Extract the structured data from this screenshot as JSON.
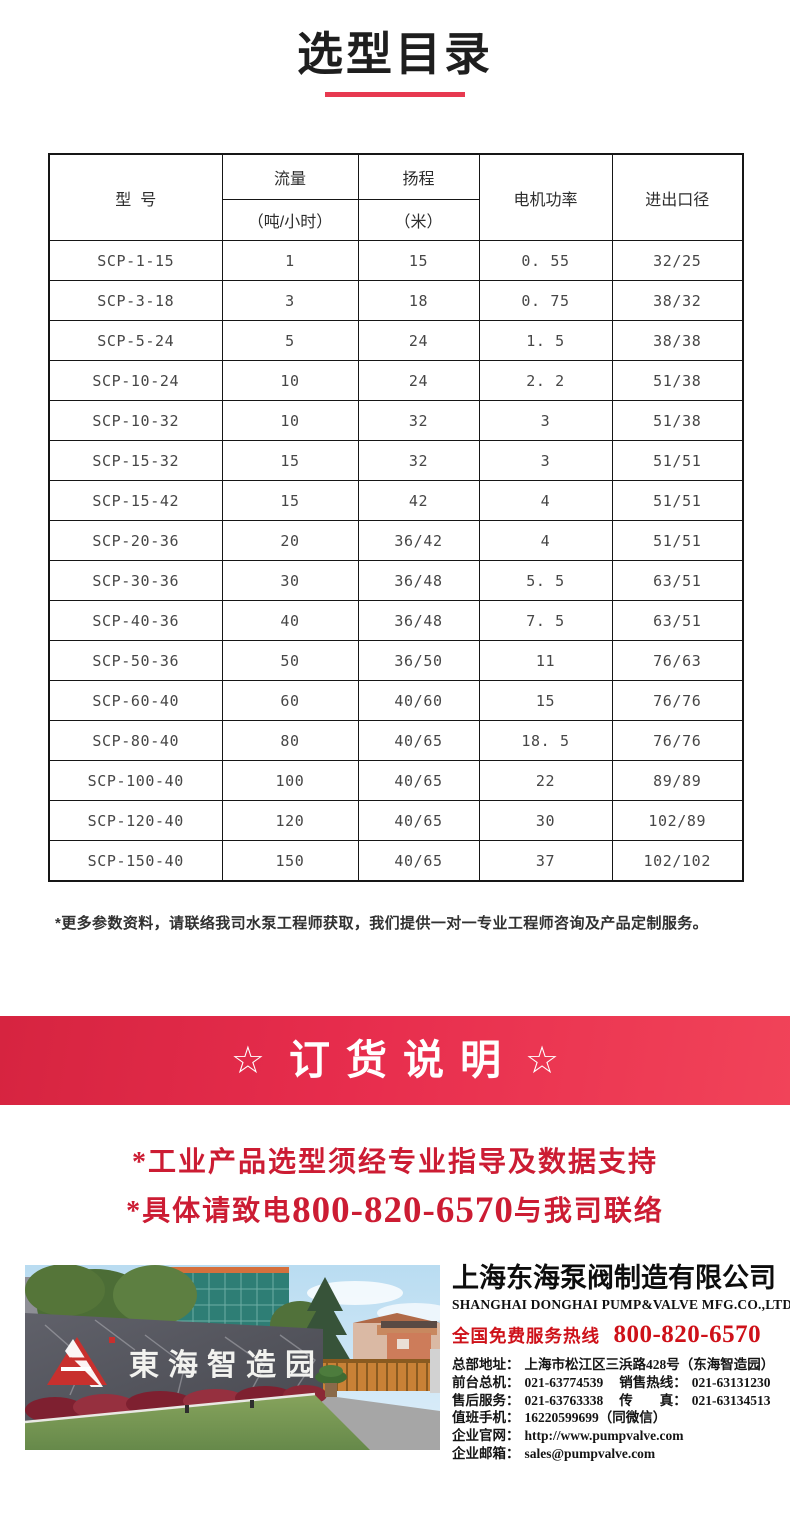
{
  "header": {
    "title": "选型目录"
  },
  "table": {
    "headers": {
      "model": "型  号",
      "flow": "流量",
      "flow_unit": "（吨/小时）",
      "head": "扬程",
      "head_unit": "（米）",
      "power": "电机功率",
      "ports": "进出口径"
    },
    "rows": [
      {
        "model": "SCP-1-15",
        "flow": "1",
        "head": "15",
        "power": "0. 55",
        "ports": "32/25"
      },
      {
        "model": "SCP-3-18",
        "flow": "3",
        "head": "18",
        "power": "0. 75",
        "ports": "38/32"
      },
      {
        "model": "SCP-5-24",
        "flow": "5",
        "head": "24",
        "power": "1. 5",
        "ports": "38/38"
      },
      {
        "model": "SCP-10-24",
        "flow": "10",
        "head": "24",
        "power": "2. 2",
        "ports": "51/38"
      },
      {
        "model": "SCP-10-32",
        "flow": "10",
        "head": "32",
        "power": "3",
        "ports": "51/38"
      },
      {
        "model": "SCP-15-32",
        "flow": "15",
        "head": "32",
        "power": "3",
        "ports": "51/51"
      },
      {
        "model": "SCP-15-42",
        "flow": "15",
        "head": "42",
        "power": "4",
        "ports": "51/51"
      },
      {
        "model": "SCP-20-36",
        "flow": "20",
        "head": "36/42",
        "power": "4",
        "ports": "51/51"
      },
      {
        "model": "SCP-30-36",
        "flow": "30",
        "head": "36/48",
        "power": "5. 5",
        "ports": "63/51"
      },
      {
        "model": "SCP-40-36",
        "flow": "40",
        "head": "36/48",
        "power": "7. 5",
        "ports": "63/51"
      },
      {
        "model": "SCP-50-36",
        "flow": "50",
        "head": "36/50",
        "power": "11",
        "ports": "76/63"
      },
      {
        "model": "SCP-60-40",
        "flow": "60",
        "head": "40/60",
        "power": "15",
        "ports": "76/76"
      },
      {
        "model": "SCP-80-40",
        "flow": "80",
        "head": "40/65",
        "power": "18. 5",
        "ports": "76/76"
      },
      {
        "model": "SCP-100-40",
        "flow": "100",
        "head": "40/65",
        "power": "22",
        "ports": "89/89"
      },
      {
        "model": "SCP-120-40",
        "flow": "120",
        "head": "40/65",
        "power": "30",
        "ports": "102/89"
      },
      {
        "model": "SCP-150-40",
        "flow": "150",
        "head": "40/65",
        "power": "37",
        "ports": "102/102"
      }
    ]
  },
  "footnote": "*更多参数资料，请联络我司水泵工程师获取，我们提供一对一专业工程师咨询及产品定制服务。",
  "order": {
    "star_left": "☆",
    "title": "订货说明",
    "star_right": "☆",
    "note1": "*工业产品选型须经专业指导及数据支持",
    "note2_prefix": "*具体请致电",
    "note2_phone": "800-820-6570",
    "note2_suffix": "与我司联络"
  },
  "company": {
    "name_cn": "上海东海泵阀制造有限公司",
    "name_en": "SHANGHAI DONGHAI PUMP&VALVE MFG.CO.,LTD.",
    "hotline_label": "全国免费服务热线",
    "hotline_number": "800-820-6570",
    "photo_sign": "東海智造园",
    "contacts": [
      [
        {
          "label": "总部地址：",
          "value": "上海市松江区三浜路428号（东海智造园）"
        }
      ],
      [
        {
          "label": "前台总机：",
          "value": "021-63774539"
        },
        {
          "label": "销售热线：",
          "value": "021-63131230"
        }
      ],
      [
        {
          "label": "售后服务：",
          "value": "021-63763338"
        },
        {
          "label": "传　　真：",
          "value": "021-63134513"
        }
      ],
      [
        {
          "label": "值班手机：",
          "value": "16220599699（同微信）"
        }
      ],
      [
        {
          "label": "企业官网：",
          "value": "http://www.pumpvalve.com"
        }
      ],
      [
        {
          "label": "企业邮箱：",
          "value": "sales@pumpvalve.com"
        }
      ]
    ]
  },
  "colors": {
    "title_text": "#1e1e1e",
    "title_underline": "#e73950",
    "banner_red": "#e72d4d",
    "notice_red": "#cc1c33",
    "hotline_red": "#ce1119",
    "table_border": "#161616",
    "logo_red": "#c8302e"
  }
}
